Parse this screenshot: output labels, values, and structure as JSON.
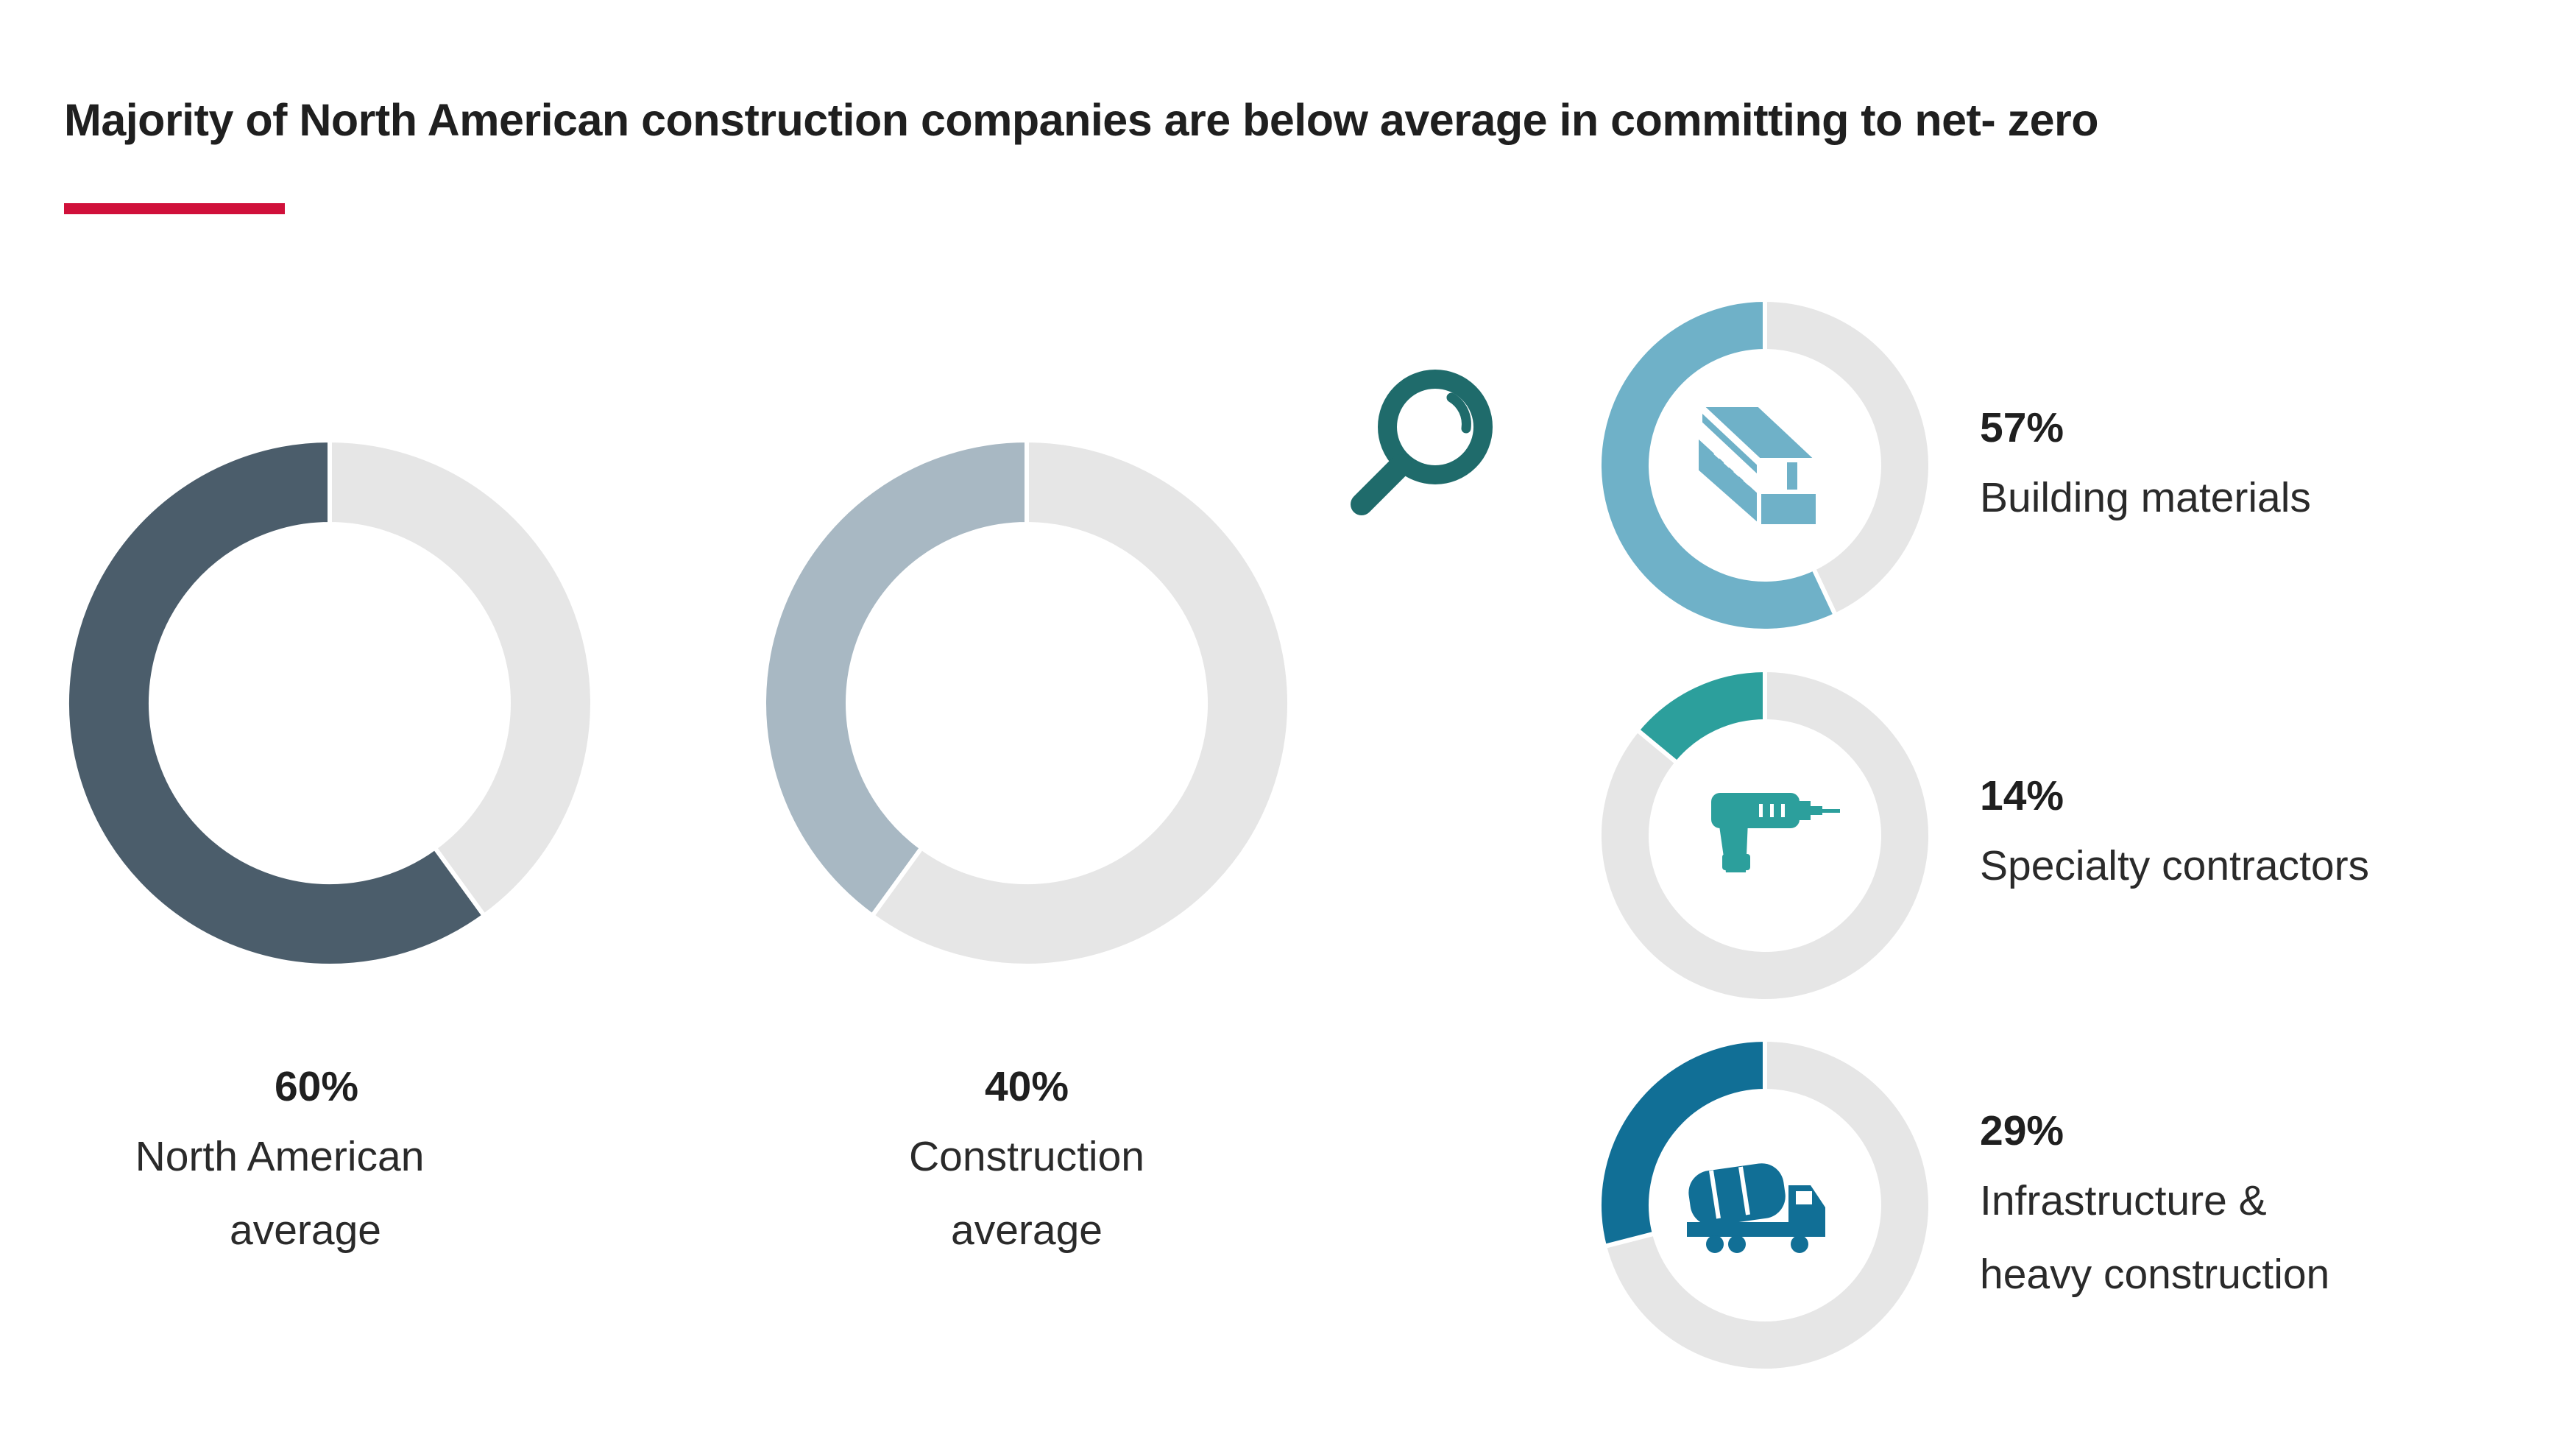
{
  "title": "Majority of North American construction companies are below average in committing to net- zero",
  "colors": {
    "accent": "#d0103a",
    "track": "#e6e6e6",
    "magnifier": "#1f6b6b"
  },
  "chart_data": {
    "type": "pie",
    "variant": "donut",
    "title": "Majority of North American construction companies are below average in committing to net- zero",
    "donuts": [
      {
        "key": "north-american",
        "value": 60,
        "value_label": "60%",
        "label_lines": [
          "North American",
          "average"
        ],
        "color": "#4b5d6b",
        "direction": "counterclockwise",
        "icon": null
      },
      {
        "key": "construction",
        "value": 40,
        "value_label": "40%",
        "label_lines": [
          "Construction",
          "average"
        ],
        "color": "#a8b8c3",
        "direction": "counterclockwise",
        "icon": null
      },
      {
        "key": "building-materials",
        "value": 57,
        "value_label": "57%",
        "label_lines": [
          "Building materials"
        ],
        "color": "#6fb1c8",
        "direction": "counterclockwise",
        "icon": "steel-beam-icon"
      },
      {
        "key": "specialty-contractors",
        "value": 14,
        "value_label": "14%",
        "label_lines": [
          "Specialty contractors"
        ],
        "color": "#2c9f9c",
        "direction": "counterclockwise",
        "icon": "power-drill-icon"
      },
      {
        "key": "infrastructure",
        "value": 29,
        "value_label": "29%",
        "label_lines": [
          "Infrastructure &",
          "heavy construction"
        ],
        "color": "#116f96",
        "direction": "counterclockwise",
        "icon": "cement-truck-icon"
      }
    ]
  }
}
